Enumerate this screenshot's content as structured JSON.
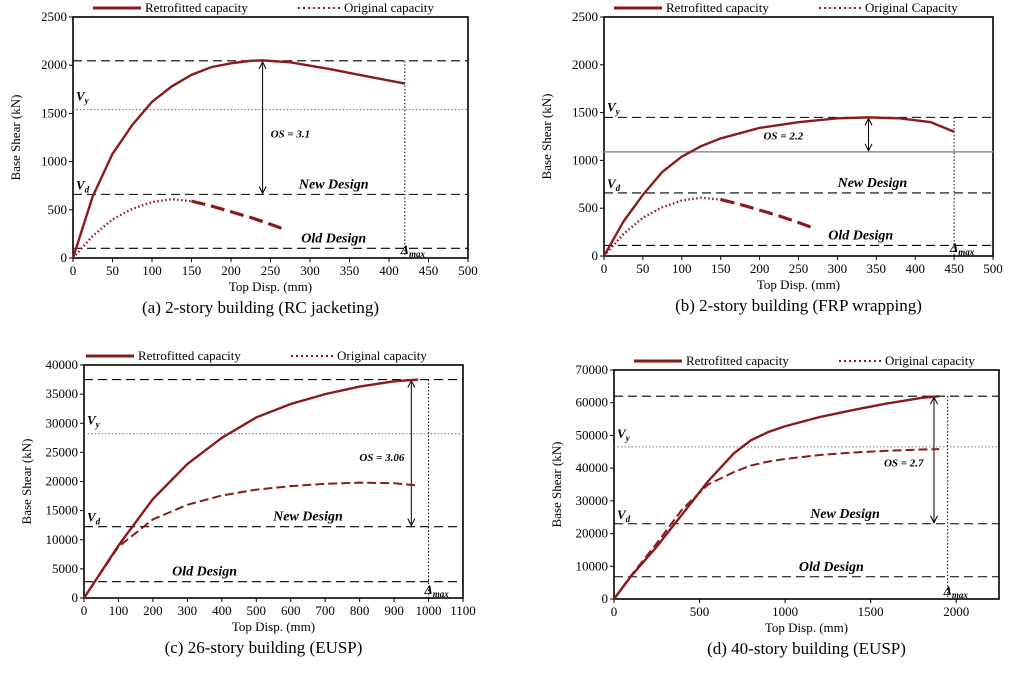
{
  "colors": {
    "retrofitted": "#8B1A1A",
    "original": "#8B1A1A",
    "reference": "#000000",
    "grid_dotted": "#7F7F7F"
  },
  "chart_data": [
    {
      "type": "line",
      "caption": "(a) 2-story building (RC jacketing)",
      "xlabel": "Top Disp. (mm)",
      "ylabel": "Base Shear (kN)",
      "xlim": [
        0,
        500
      ],
      "ylim": [
        0,
        2500
      ],
      "xticks": [
        "0",
        "50",
        "100",
        "150",
        "200",
        "250",
        "300",
        "350",
        "400",
        "450",
        "500"
      ],
      "yticks": [
        "0",
        "500",
        "1000",
        "1500",
        "2000",
        "2500"
      ],
      "legend": {
        "position": "top",
        "entries": [
          "Retrofitted capacity",
          "Original capacity"
        ]
      },
      "series": [
        {
          "name": "Retrofitted capacity",
          "style": "solid",
          "x": [
            0,
            25,
            50,
            75,
            100,
            125,
            150,
            175,
            200,
            225,
            240,
            275,
            325,
            375,
            420
          ],
          "y": [
            0,
            640,
            1080,
            1380,
            1620,
            1780,
            1900,
            1980,
            2020,
            2045,
            2050,
            2030,
            1960,
            1880,
            1810
          ]
        },
        {
          "name": "Original capacity",
          "style": "dotted-then-dashed",
          "x": [
            0,
            25,
            50,
            75,
            100,
            125,
            150,
            175,
            200,
            225,
            250,
            270
          ],
          "y": [
            0,
            230,
            400,
            510,
            580,
            610,
            590,
            540,
            480,
            420,
            350,
            290
          ]
        }
      ],
      "hlines": [
        {
          "label": "",
          "y": 2045,
          "style": "dashed"
        },
        {
          "label": "Vy",
          "y": 1540,
          "style": "dotted"
        },
        {
          "label": "New Design",
          "y": 660,
          "style": "dashed"
        },
        {
          "label": "Old Design",
          "y": 100,
          "style": "dashed"
        }
      ],
      "vline": {
        "label": "Δmax",
        "x": 420
      },
      "vd_label": {
        "label": "Vd",
        "y": 660
      },
      "os": {
        "label": "OS = 3.1",
        "x": 240,
        "y_top": 2045,
        "y_bottom": 660
      }
    },
    {
      "type": "line",
      "caption": "(b) 2-story building (FRP wrapping)",
      "xlabel": "Top Disp. (mm)",
      "ylabel": "Base Shear (kN)",
      "xlim": [
        0,
        500
      ],
      "ylim": [
        0,
        2500
      ],
      "xticks": [
        "0",
        "50",
        "100",
        "150",
        "200",
        "250",
        "300",
        "350",
        "400",
        "450",
        "500"
      ],
      "yticks": [
        "0",
        "500",
        "1000",
        "1500",
        "2000",
        "2500"
      ],
      "legend": {
        "position": "top",
        "entries": [
          "Retrofitted capacity",
          "Original Capacity"
        ]
      },
      "series": [
        {
          "name": "Retrofitted capacity",
          "style": "solid",
          "x": [
            0,
            25,
            50,
            75,
            100,
            125,
            150,
            200,
            250,
            300,
            340,
            380,
            420,
            450
          ],
          "y": [
            0,
            360,
            640,
            880,
            1040,
            1150,
            1230,
            1340,
            1400,
            1440,
            1450,
            1440,
            1400,
            1300
          ]
        },
        {
          "name": "Original Capacity",
          "style": "dotted-then-dashed",
          "x": [
            0,
            25,
            50,
            75,
            100,
            125,
            150,
            175,
            200,
            225,
            250,
            270
          ],
          "y": [
            0,
            230,
            400,
            510,
            580,
            610,
            590,
            540,
            480,
            420,
            350,
            290
          ]
        }
      ],
      "hlines": [
        {
          "label": "Vy",
          "y": 1450,
          "style": "dashed"
        },
        {
          "label": "",
          "y": 1090,
          "style": "solid-grey"
        },
        {
          "label": "New Design",
          "y": 660,
          "style": "dashed"
        },
        {
          "label": "Old Design",
          "y": 110,
          "style": "dashed"
        }
      ],
      "vline": {
        "label": "Δmax",
        "x": 450
      },
      "vd_label": {
        "label": "Vd",
        "y": 660
      },
      "os": {
        "label": "OS = 2.2",
        "x": 340,
        "y_top": 1450,
        "y_bottom": 1090
      }
    },
    {
      "type": "line",
      "caption": "(c) 26-story building (EUSP)",
      "xlabel": "Top Disp. (mm)",
      "ylabel": "Base Shear (kN)",
      "xlim": [
        0,
        1100
      ],
      "ylim": [
        0,
        40000
      ],
      "xticks": [
        "0",
        "100",
        "200",
        "300",
        "400",
        "500",
        "600",
        "700",
        "800",
        "900",
        "1000",
        "1100"
      ],
      "yticks": [
        "0",
        "5000",
        "10000",
        "15000",
        "20000",
        "25000",
        "30000",
        "35000",
        "40000"
      ],
      "legend": {
        "position": "top",
        "entries": [
          "Retrofitted capacity",
          "Original capacity"
        ]
      },
      "series": [
        {
          "name": "Retrofitted capacity",
          "style": "solid",
          "x": [
            0,
            100,
            200,
            300,
            400,
            500,
            600,
            700,
            800,
            900,
            970
          ],
          "y": [
            0,
            9000,
            17000,
            23000,
            27500,
            31000,
            33300,
            35000,
            36300,
            37200,
            37500
          ]
        },
        {
          "name": "Original capacity",
          "style": "dashed",
          "x": [
            0,
            100,
            200,
            300,
            400,
            500,
            600,
            700,
            800,
            900,
            970
          ],
          "y": [
            0,
            8800,
            13500,
            16000,
            17600,
            18600,
            19200,
            19600,
            19800,
            19700,
            19300
          ]
        }
      ],
      "hlines": [
        {
          "label": "",
          "y": 37500,
          "style": "dashed"
        },
        {
          "label": "Vy",
          "y": 28200,
          "style": "dotted"
        },
        {
          "label": "New Design",
          "y": 12250,
          "style": "dashed"
        },
        {
          "label": "Old Design",
          "y": 2800,
          "style": "dashed"
        }
      ],
      "vline": {
        "label": "Δmax",
        "x": 1000
      },
      "vd_label": {
        "label": "Vd",
        "y": 12250
      },
      "os": {
        "label": "OS = 3.06",
        "x": 950,
        "y_top": 37500,
        "y_bottom": 12250
      }
    },
    {
      "type": "line",
      "caption": "(d) 40-story building (EUSP)",
      "xlabel": "Top Disp. (mm)",
      "ylabel": "Base Shear (kN)",
      "xlim": [
        0,
        2250
      ],
      "ylim": [
        0,
        70000
      ],
      "xticks": [
        "0",
        "500",
        "1000",
        "1500",
        "2000"
      ],
      "yticks": [
        "0",
        "10000",
        "20000",
        "30000",
        "40000",
        "50000",
        "60000",
        "70000"
      ],
      "legend": {
        "position": "top",
        "entries": [
          "Retrofitted capacity",
          "Original capacity"
        ]
      },
      "series": [
        {
          "name": "Retrofitted capacity",
          "style": "solid",
          "x": [
            0,
            100,
            250,
            400,
            550,
            700,
            800,
            900,
            1000,
            1200,
            1400,
            1600,
            1800,
            1900
          ],
          "y": [
            0,
            7000,
            16000,
            26000,
            36000,
            44500,
            48500,
            51000,
            52800,
            55600,
            57800,
            59800,
            61500,
            62000
          ]
        },
        {
          "name": "Original capacity",
          "style": "dashed",
          "x": [
            0,
            100,
            250,
            400,
            550,
            700,
            800,
            900,
            1000,
            1200,
            1400,
            1600,
            1800,
            1900
          ],
          "y": [
            0,
            7200,
            17000,
            27500,
            35000,
            38800,
            40800,
            42000,
            42800,
            44000,
            44800,
            45300,
            45700,
            45800
          ]
        }
      ],
      "hlines": [
        {
          "label": "",
          "y": 62000,
          "style": "dashed"
        },
        {
          "label": "Vy",
          "y": 46500,
          "style": "dotted"
        },
        {
          "label": "New Design",
          "y": 23000,
          "style": "dashed"
        },
        {
          "label": "Old Design",
          "y": 6800,
          "style": "dashed"
        }
      ],
      "vline": {
        "label": "Δmax",
        "x": 1950
      },
      "vd_label": {
        "label": "Vd",
        "y": 23000
      },
      "os": {
        "label": "OS = 2.7",
        "x": 1870,
        "y_top": 62000,
        "y_bottom": 23000
      }
    }
  ]
}
